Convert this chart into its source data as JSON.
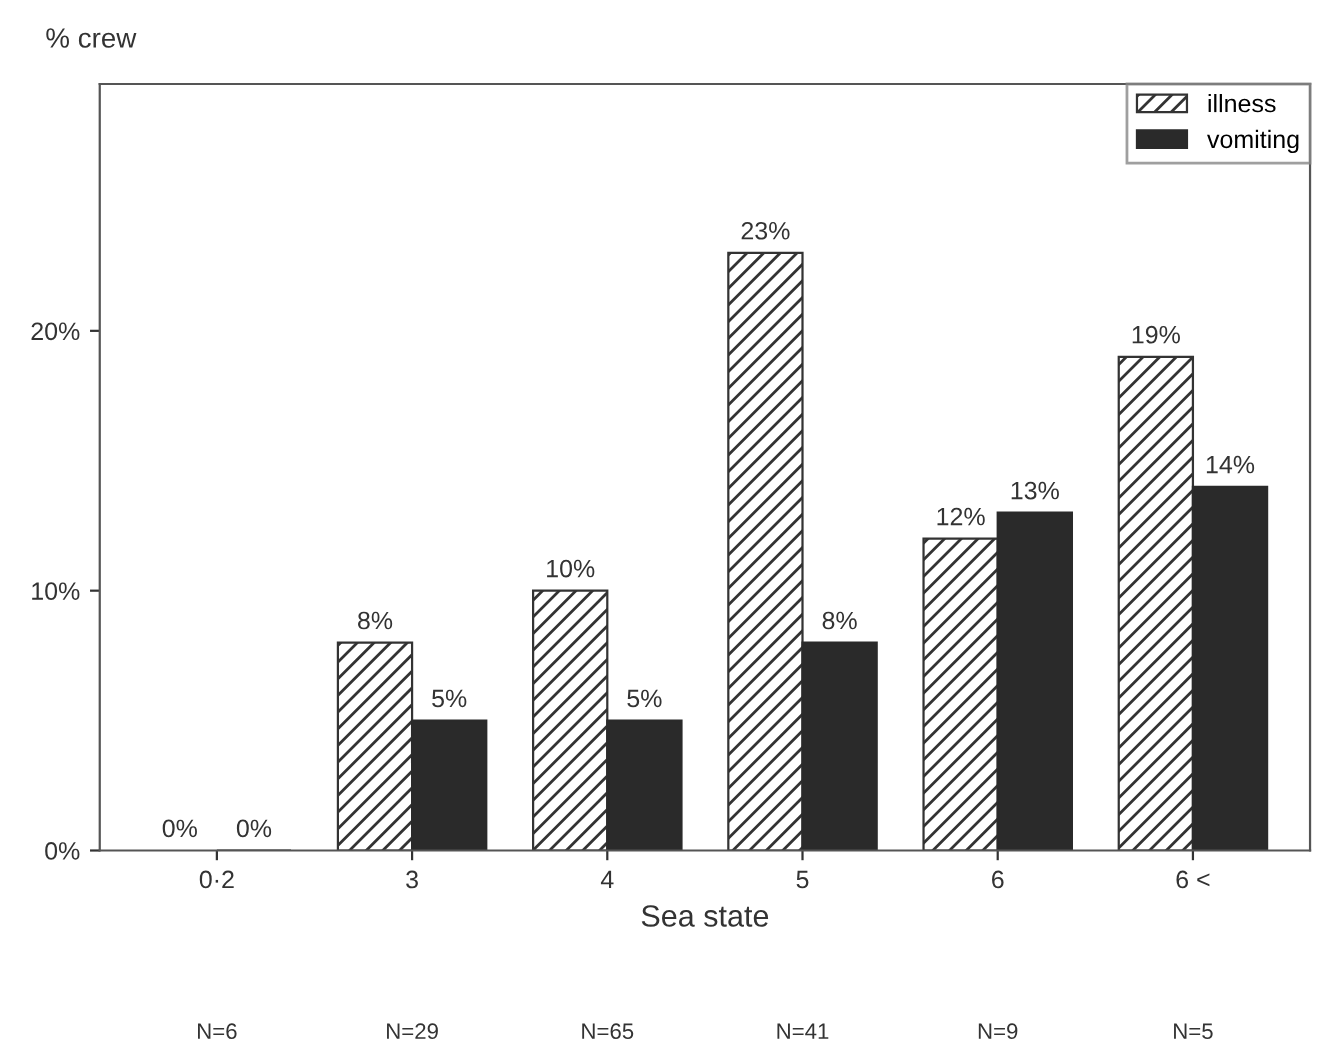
{
  "chart_data": {
    "type": "bar",
    "ylabel": "% crew",
    "xlabel": "Sea state",
    "categories": [
      "0·2",
      "3",
      "4",
      "5",
      "6",
      "6 <"
    ],
    "series": [
      {
        "name": "illness",
        "color": "#ffffff",
        "values": [
          0,
          8,
          10,
          23,
          12,
          19
        ],
        "value_labels": [
          "0%",
          "8%",
          "10%",
          "23%",
          "12%",
          "19%"
        ]
      },
      {
        "name": "vomiting",
        "color": "#2a2a2a",
        "values": [
          0,
          5,
          5,
          8,
          13,
          14
        ],
        "value_labels": [
          "0%",
          "5%",
          "5%",
          "8%",
          "13%",
          "14%"
        ]
      }
    ],
    "ylim": [
      0,
      29.5
    ],
    "yticks": [
      {
        "value": 0,
        "label": "0%"
      },
      {
        "value": 10,
        "label": "10%"
      },
      {
        "value": 20,
        "label": "20%"
      }
    ],
    "annotations": [
      "N=6",
      "N=29",
      "N=65",
      "N=41",
      "N=9",
      "N=5"
    ],
    "legend": "top right",
    "grid": false
  }
}
